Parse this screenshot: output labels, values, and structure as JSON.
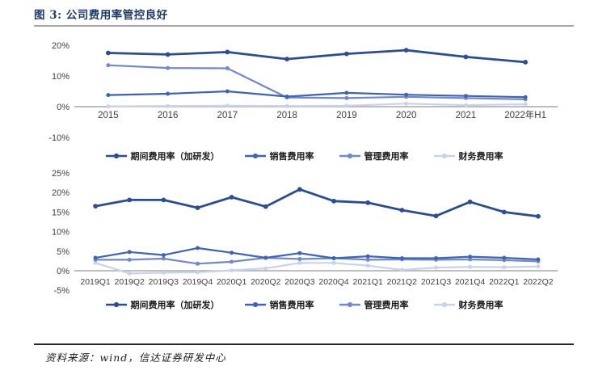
{
  "title": "图 3:  公司费用率管控良好",
  "source": "资料来源：wind，信达证券研发中心",
  "colors": {
    "period_total": "#2c4d8e",
    "sales": "#3f63af",
    "admin": "#7289c7",
    "finance": "#c8d2ea",
    "axis_line": "#a9a9a9",
    "tick_text": "#3f3f3f",
    "title_navy": "#1e3a68"
  },
  "chart_data": [
    {
      "type": "line",
      "name": "annual-expense-ratio-chart",
      "categories": [
        "2015",
        "2016",
        "2017",
        "2018",
        "2019",
        "2020",
        "2021",
        "2022年H1"
      ],
      "series": [
        {
          "name": "期间费用率（加研发）",
          "color_key": "period_total",
          "values": [
            17.5,
            17.0,
            17.8,
            15.5,
            17.2,
            18.4,
            16.2,
            14.5
          ]
        },
        {
          "name": "销售费用率",
          "color_key": "sales",
          "values": [
            3.8,
            4.2,
            5.0,
            3.3,
            4.5,
            3.9,
            3.5,
            3.1
          ]
        },
        {
          "name": "管理费用率",
          "color_key": "admin",
          "values": [
            13.5,
            12.6,
            12.5,
            3.0,
            2.8,
            3.2,
            2.8,
            2.4
          ]
        },
        {
          "name": "财务费用率",
          "color_key": "finance",
          "values": [
            0.1,
            0.2,
            0.3,
            0.2,
            0.3,
            1.0,
            0.5,
            0.8
          ]
        }
      ],
      "ylim": [
        -10,
        20
      ],
      "yticks": [
        20,
        10,
        0,
        -10
      ],
      "grid": false,
      "legend_position": "bottom"
    },
    {
      "type": "line",
      "name": "quarterly-expense-ratio-chart",
      "categories": [
        "2019Q1",
        "2019Q2",
        "2019Q3",
        "2019Q4",
        "2020Q1",
        "2020Q2",
        "2020Q3",
        "2020Q4",
        "2021Q1",
        "2021Q2",
        "2021Q3",
        "2021Q4",
        "2022Q1",
        "2022Q2"
      ],
      "series": [
        {
          "name": "期间费用率（加研发）",
          "color_key": "period_total",
          "values": [
            16.5,
            18.1,
            18.1,
            16.1,
            18.8,
            16.4,
            20.8,
            17.8,
            17.4,
            15.5,
            14.0,
            17.6,
            15.0,
            13.9
          ]
        },
        {
          "name": "销售费用率",
          "color_key": "sales",
          "values": [
            3.3,
            4.8,
            4.0,
            5.8,
            4.6,
            3.3,
            4.5,
            3.2,
            3.7,
            3.2,
            3.2,
            3.6,
            3.3,
            2.9
          ]
        },
        {
          "name": "管理费用率",
          "color_key": "admin",
          "values": [
            2.8,
            2.8,
            3.1,
            1.8,
            2.3,
            3.3,
            3.0,
            3.2,
            2.8,
            2.9,
            2.8,
            2.9,
            2.7,
            2.4
          ]
        },
        {
          "name": "财务费用率",
          "color_key": "finance",
          "values": [
            2.0,
            -0.7,
            -0.5,
            -0.4,
            0.1,
            0.6,
            2.0,
            2.0,
            1.3,
            0.2,
            0.8,
            1.0,
            0.9,
            1.1
          ]
        }
      ],
      "ylim": [
        -5,
        25
      ],
      "yticks": [
        25,
        20,
        15,
        10,
        5,
        0,
        -5
      ],
      "grid": false,
      "legend_position": "bottom"
    }
  ]
}
